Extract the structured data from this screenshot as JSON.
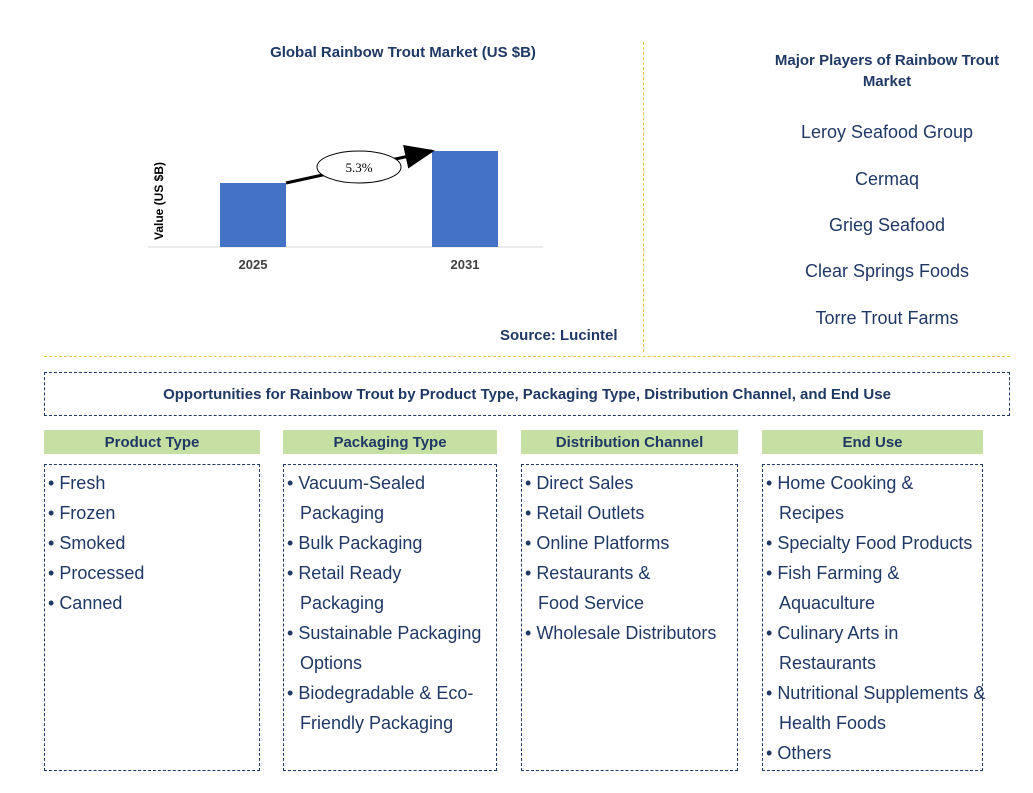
{
  "chart_data": {
    "type": "bar",
    "title": "Global Rainbow Trout Market (US $B)",
    "ylabel": "Value (US $B)",
    "xlabel": "",
    "categories": [
      "2025",
      "2031"
    ],
    "values": [
      1.0,
      1.5
    ],
    "annotation": "5.3%",
    "bar_color": "#4472c4"
  },
  "source": "Source: Lucintel",
  "players": {
    "title": "Major Players of Rainbow Trout Market",
    "items": [
      "Leroy Seafood Group",
      "Cermaq",
      "Grieg Seafood",
      "Clear Springs Foods",
      "Torre Trout Farms"
    ]
  },
  "opportunities": {
    "title": "Opportunities for Rainbow Trout by Product Type, Packaging Type, Distribution Channel, and End Use",
    "categories": [
      {
        "title": "Product Type",
        "items": [
          "Fresh",
          "Frozen",
          "Smoked",
          "Processed",
          "Canned"
        ]
      },
      {
        "title": "Packaging Type",
        "items": [
          "Vacuum-Sealed Packaging",
          "Bulk Packaging",
          "Retail Ready Packaging",
          "Sustainable Packaging Options",
          "Biodegradable & Eco-Friendly Packaging"
        ]
      },
      {
        "title": "Distribution Channel",
        "items": [
          "Direct Sales",
          "Retail Outlets",
          "Online Platforms",
          "Restaurants & Food Service",
          "Wholesale Distributors"
        ]
      },
      {
        "title": "End Use",
        "items": [
          "Home Cooking & Recipes",
          "Specialty Food Products",
          "Fish Farming & Aquaculture",
          "Culinary Arts in Restaurants",
          "Nutritional Supplements & Health Foods",
          "Others"
        ]
      }
    ]
  }
}
